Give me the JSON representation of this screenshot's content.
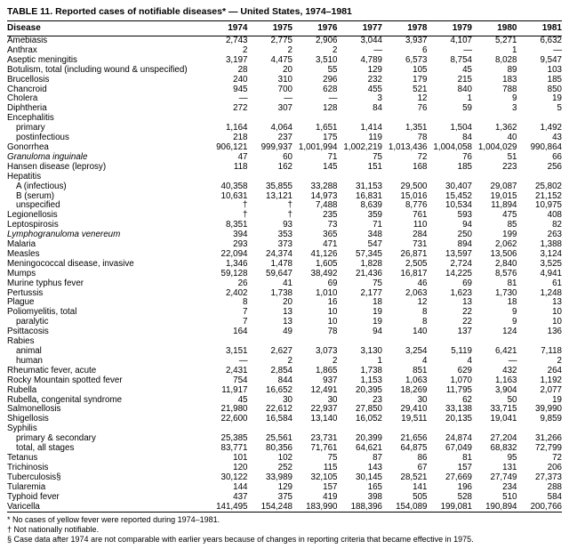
{
  "title": "TABLE 11. Reported cases of notifiable diseases* — United States, 1974–1981",
  "table": {
    "columns": [
      "Disease",
      "1974",
      "1975",
      "1976",
      "1977",
      "1978",
      "1979",
      "1980",
      "1981"
    ],
    "rows": [
      {
        "disease": "Amebiasis",
        "values": [
          "2,743",
          "2,775",
          "2,906",
          "3,044",
          "3,937",
          "4,107",
          "5,271",
          "6,632"
        ]
      },
      {
        "disease": "Anthrax",
        "values": [
          "2",
          "2",
          "2",
          "—",
          "6",
          "—",
          "1",
          "—"
        ]
      },
      {
        "disease": "Aseptic meningitis",
        "values": [
          "3,197",
          "4,475",
          "3,510",
          "4,789",
          "6,573",
          "8,754",
          "8,028",
          "9,547"
        ]
      },
      {
        "disease": "Botulism, total (including wound & unspecified)",
        "values": [
          "28",
          "20",
          "55",
          "129",
          "105",
          "45",
          "89",
          "103"
        ]
      },
      {
        "disease": "Brucellosis",
        "values": [
          "240",
          "310",
          "296",
          "232",
          "179",
          "215",
          "183",
          "185"
        ]
      },
      {
        "disease": "Chancroid",
        "values": [
          "945",
          "700",
          "628",
          "455",
          "521",
          "840",
          "788",
          "850"
        ]
      },
      {
        "disease": "Cholera",
        "values": [
          "—",
          "—",
          "—",
          "3",
          "12",
          "1",
          "9",
          "19"
        ]
      },
      {
        "disease": "Diphtheria",
        "values": [
          "272",
          "307",
          "128",
          "84",
          "76",
          "59",
          "3",
          "5"
        ]
      },
      {
        "disease": "Encephalitis",
        "section": true,
        "values": []
      },
      {
        "disease": "primary",
        "indent": true,
        "values": [
          "1,164",
          "4,064",
          "1,651",
          "1,414",
          "1,351",
          "1,504",
          "1,362",
          "1,492"
        ]
      },
      {
        "disease": "postinfectious",
        "indent": true,
        "values": [
          "218",
          "237",
          "175",
          "119",
          "78",
          "84",
          "40",
          "43"
        ]
      },
      {
        "disease": "Gonorrhea",
        "values": [
          "906,121",
          "999,937",
          "1,001,994",
          "1,002,219",
          "1,013,436",
          "1,004,058",
          "1,004,029",
          "990,864"
        ]
      },
      {
        "disease": "Granuloma inguinale",
        "italic": true,
        "values": [
          "47",
          "60",
          "71",
          "75",
          "72",
          "76",
          "51",
          "66"
        ]
      },
      {
        "disease": "Hansen disease (leprosy)",
        "values": [
          "118",
          "162",
          "145",
          "151",
          "168",
          "185",
          "223",
          "256"
        ]
      },
      {
        "disease": "Hepatitis",
        "section": true,
        "values": []
      },
      {
        "disease": "A (infectious)",
        "indent": true,
        "values": [
          "40,358",
          "35,855",
          "33,288",
          "31,153",
          "29,500",
          "30,407",
          "29,087",
          "25,802"
        ]
      },
      {
        "disease": "B (serum)",
        "indent": true,
        "values": [
          "10,631",
          "13,121",
          "14,973",
          "16,831",
          "15,016",
          "15,452",
          "19,015",
          "21,152"
        ]
      },
      {
        "disease": "unspecified",
        "indent": true,
        "values": [
          "†",
          "†",
          "7,488",
          "8,639",
          "8,776",
          "10,534",
          "11,894",
          "10,975"
        ]
      },
      {
        "disease": "Legionellosis",
        "values": [
          "†",
          "†",
          "235",
          "359",
          "761",
          "593",
          "475",
          "408"
        ]
      },
      {
        "disease": "Leptospirosis",
        "values": [
          "8,351",
          "93",
          "73",
          "71",
          "110",
          "94",
          "85",
          "82"
        ]
      },
      {
        "disease": "Lymphogranuloma venereum",
        "italic": true,
        "values": [
          "394",
          "353",
          "365",
          "348",
          "284",
          "250",
          "199",
          "263"
        ]
      },
      {
        "disease": "Malaria",
        "values": [
          "293",
          "373",
          "471",
          "547",
          "731",
          "894",
          "2,062",
          "1,388"
        ]
      },
      {
        "disease": "Measles",
        "values": [
          "22,094",
          "24,374",
          "41,126",
          "57,345",
          "26,871",
          "13,597",
          "13,506",
          "3,124"
        ]
      },
      {
        "disease": "Meningococcal disease, invasive",
        "values": [
          "1,346",
          "1,478",
          "1,605",
          "1,828",
          "2,505",
          "2,724",
          "2,840",
          "3,525"
        ]
      },
      {
        "disease": "Mumps",
        "values": [
          "59,128",
          "59,647",
          "38,492",
          "21,436",
          "16,817",
          "14,225",
          "8,576",
          "4,941"
        ]
      },
      {
        "disease": "Murine typhus fever",
        "values": [
          "26",
          "41",
          "69",
          "75",
          "46",
          "69",
          "81",
          "61"
        ]
      },
      {
        "disease": "Pertussis",
        "values": [
          "2,402",
          "1,738",
          "1,010",
          "2,177",
          "2,063",
          "1,623",
          "1,730",
          "1,248"
        ]
      },
      {
        "disease": "Plague",
        "values": [
          "8",
          "20",
          "16",
          "18",
          "12",
          "13",
          "18",
          "13"
        ]
      },
      {
        "disease": "Poliomyelitis, total",
        "values": [
          "7",
          "13",
          "10",
          "19",
          "8",
          "22",
          "9",
          "10"
        ]
      },
      {
        "disease": "paralytic",
        "indent": true,
        "values": [
          "7",
          "13",
          "10",
          "19",
          "8",
          "22",
          "9",
          "10"
        ]
      },
      {
        "disease": "Psittacosis",
        "values": [
          "164",
          "49",
          "78",
          "94",
          "140",
          "137",
          "124",
          "136"
        ]
      },
      {
        "disease": "Rabies",
        "section": true,
        "values": []
      },
      {
        "disease": "animal",
        "indent": true,
        "values": [
          "3,151",
          "2,627",
          "3,073",
          "3,130",
          "3,254",
          "5,119",
          "6,421",
          "7,118"
        ]
      },
      {
        "disease": "human",
        "indent": true,
        "values": [
          "—",
          "2",
          "2",
          "1",
          "4",
          "4",
          "—",
          "2"
        ]
      },
      {
        "disease": "Rheumatic fever, acute",
        "values": [
          "2,431",
          "2,854",
          "1,865",
          "1,738",
          "851",
          "629",
          "432",
          "264"
        ]
      },
      {
        "disease": "Rocky Mountain spotted fever",
        "values": [
          "754",
          "844",
          "937",
          "1,153",
          "1,063",
          "1,070",
          "1,163",
          "1,192"
        ]
      },
      {
        "disease": "Rubella",
        "values": [
          "11,917",
          "16,652",
          "12,491",
          "20,395",
          "18,269",
          "11,795",
          "3,904",
          "2,077"
        ]
      },
      {
        "disease": "Rubella, congenital syndrome",
        "values": [
          "45",
          "30",
          "30",
          "23",
          "30",
          "62",
          "50",
          "19"
        ]
      },
      {
        "disease": "Salmonellosis",
        "values": [
          "21,980",
          "22,612",
          "22,937",
          "27,850",
          "29,410",
          "33,138",
          "33,715",
          "39,990"
        ]
      },
      {
        "disease": "Shigellosis",
        "values": [
          "22,600",
          "16,584",
          "13,140",
          "16,052",
          "19,511",
          "20,135",
          "19,041",
          "9,859"
        ]
      },
      {
        "disease": "Syphilis",
        "section": true,
        "values": []
      },
      {
        "disease": "primary & secondary",
        "indent": true,
        "values": [
          "25,385",
          "25,561",
          "23,731",
          "20,399",
          "21,656",
          "24,874",
          "27,204",
          "31,266"
        ]
      },
      {
        "disease": "total, all stages",
        "indent": true,
        "values": [
          "83,771",
          "80,356",
          "71,761",
          "64,621",
          "64,875",
          "67,049",
          "68,832",
          "72,799"
        ]
      },
      {
        "disease": "Tetanus",
        "values": [
          "101",
          "102",
          "75",
          "87",
          "86",
          "81",
          "95",
          "72"
        ]
      },
      {
        "disease": "Trichinosis",
        "values": [
          "120",
          "252",
          "115",
          "143",
          "67",
          "157",
          "131",
          "206"
        ]
      },
      {
        "disease": "Tuberculosis§",
        "values": [
          "30,122",
          "33,989",
          "32,105",
          "30,145",
          "28,521",
          "27,669",
          "27,749",
          "27,373"
        ]
      },
      {
        "disease": "Tularemia",
        "values": [
          "144",
          "129",
          "157",
          "165",
          "141",
          "196",
          "234",
          "288"
        ]
      },
      {
        "disease": "Typhoid fever",
        "values": [
          "437",
          "375",
          "419",
          "398",
          "505",
          "528",
          "510",
          "584"
        ]
      },
      {
        "disease": "Varicella",
        "values": [
          "141,495",
          "154,248",
          "183,990",
          "188,396",
          "154,089",
          "199,081",
          "190,894",
          "200,766"
        ]
      }
    ]
  },
  "footnotes": [
    "* No cases of yellow fever were reported during 1974–1981.",
    "† Not nationally notifiable.",
    "§ Case data after 1974 are not comparable with earlier years because of changes in reporting criteria that became effective in 1975."
  ]
}
